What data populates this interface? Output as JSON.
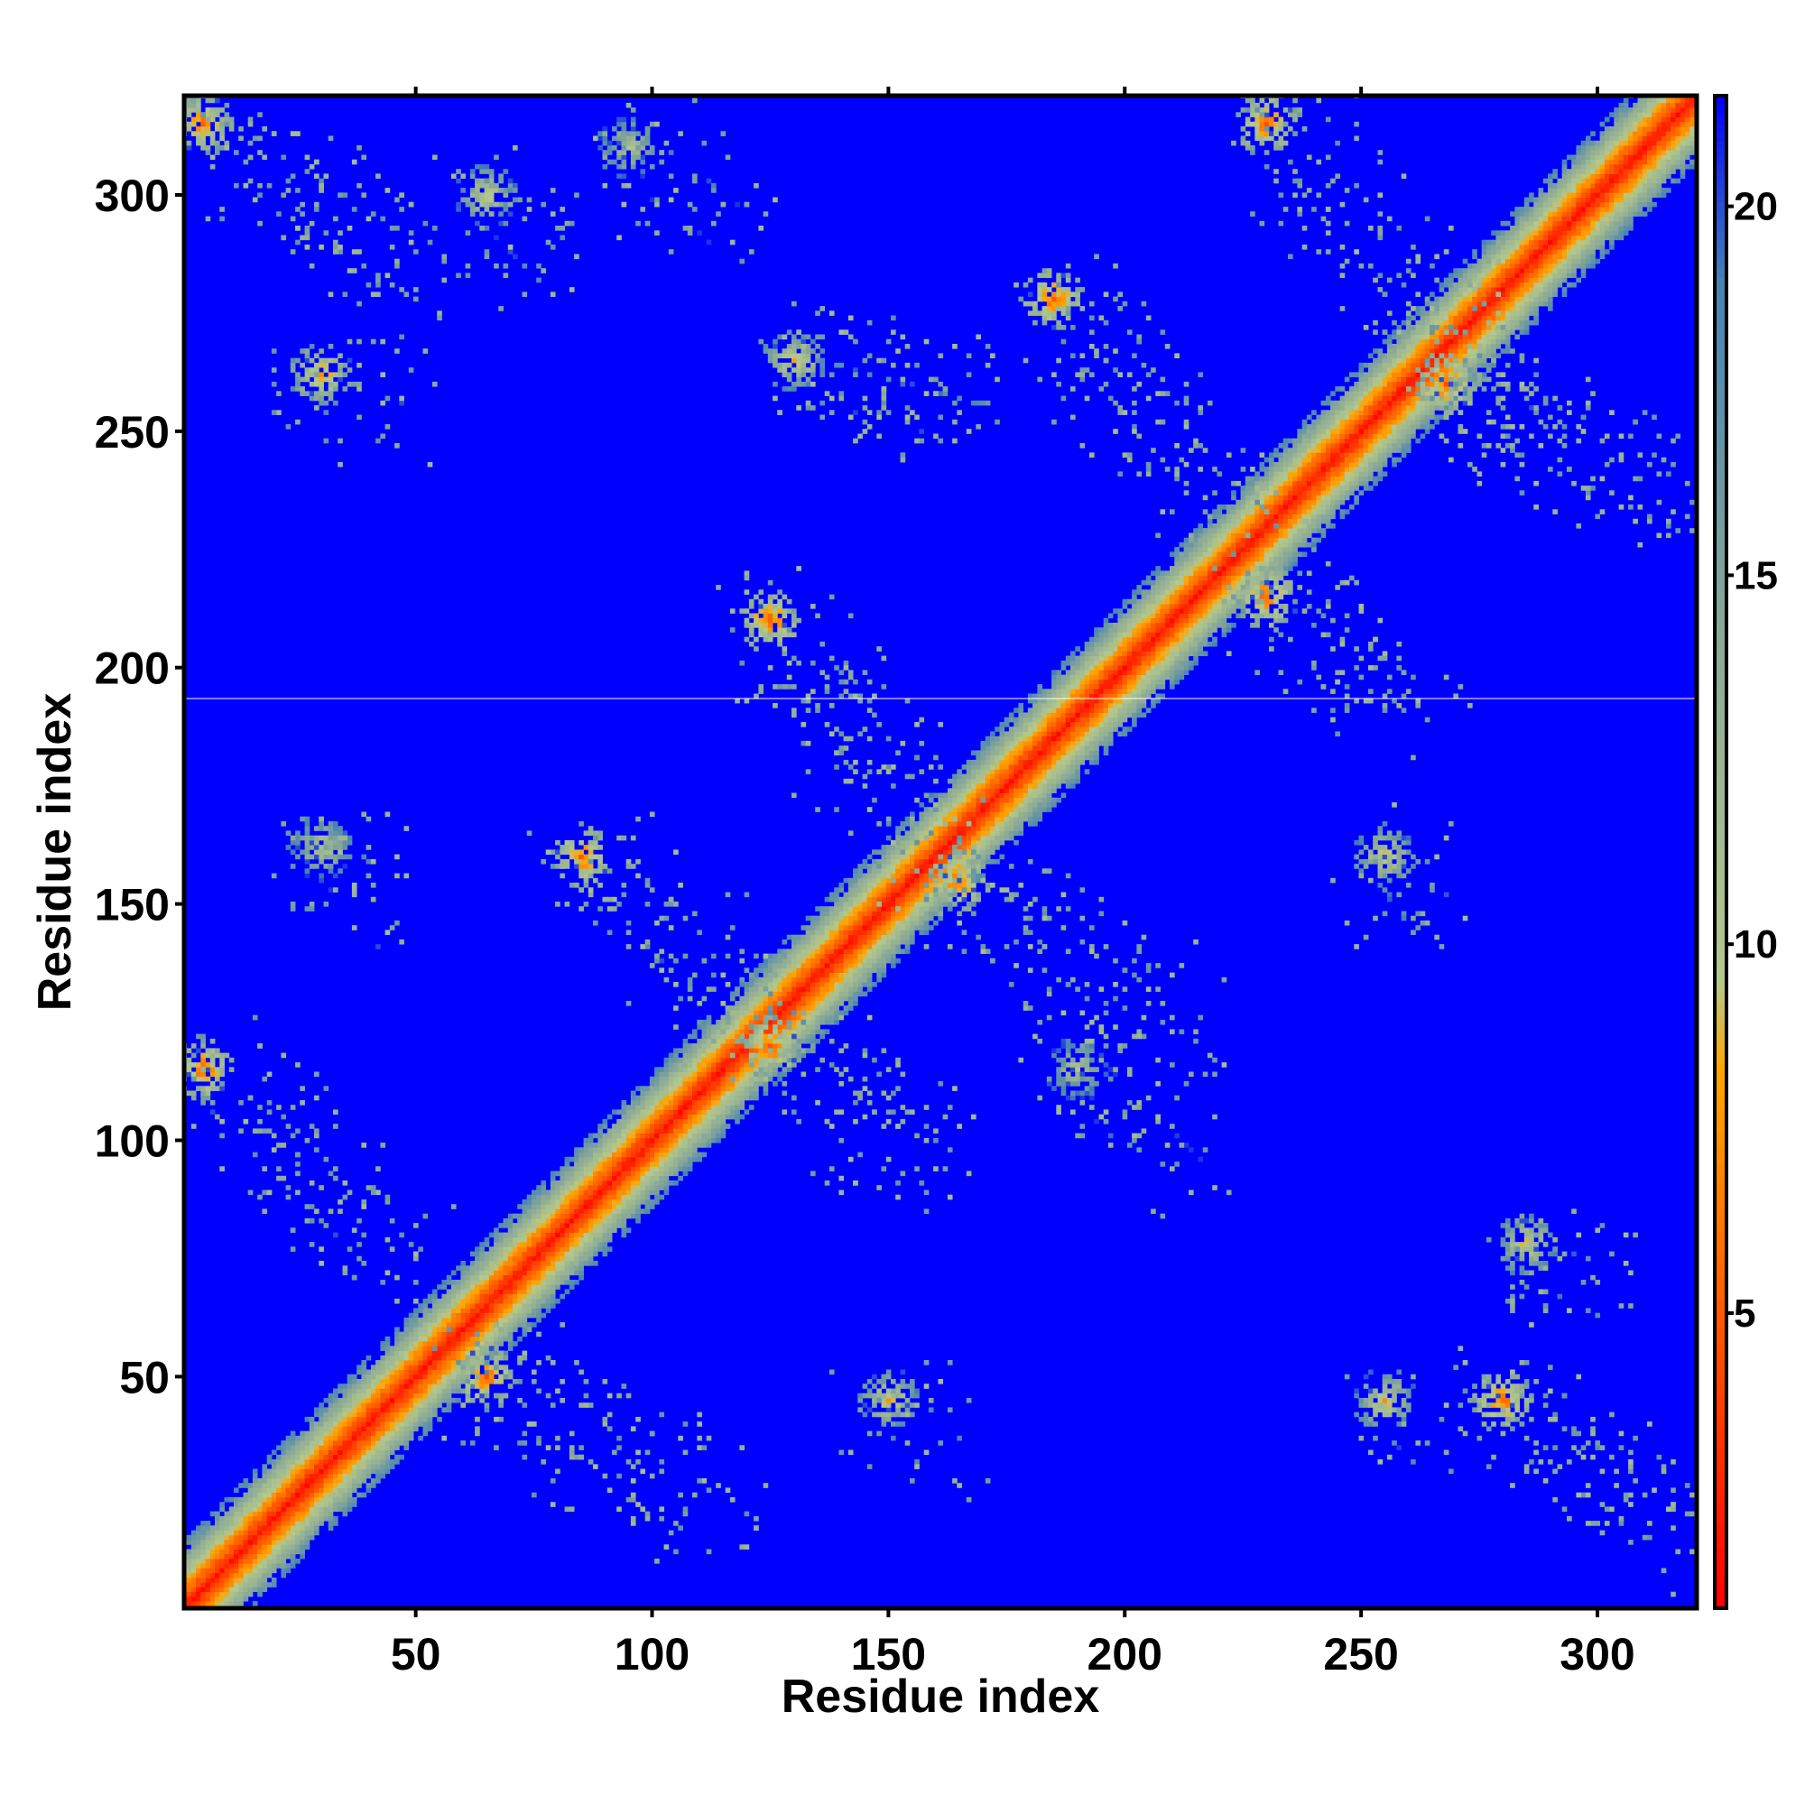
{
  "chart_data": {
    "type": "heatmap",
    "title": "",
    "xlabel": "Residue index",
    "ylabel": "Residue index",
    "xlim": [
      1,
      321
    ],
    "ylim": [
      1,
      321
    ],
    "x_ticks": [
      50,
      100,
      150,
      200,
      250,
      300
    ],
    "y_ticks": [
      50,
      100,
      150,
      200,
      250,
      300
    ],
    "colorbar": {
      "range": [
        1,
        21.5
      ],
      "ticks": [
        5,
        10,
        15,
        20
      ],
      "stops": [
        {
          "value": 1,
          "color": "#ff0000"
        },
        {
          "value": 5,
          "color": "#ff5a00"
        },
        {
          "value": 8.3,
          "color": "#ffa500"
        },
        {
          "value": 9.5,
          "color": "#b4c88c"
        },
        {
          "value": 14,
          "color": "#8caa96"
        },
        {
          "value": 19,
          "color": "#4682b4"
        },
        {
          "value": 21.5,
          "color": "#0000ff"
        }
      ]
    },
    "background_value": 21.5,
    "background_color": "#0000ff",
    "diagonal": {
      "min_value": 2,
      "width_residues": 14
    },
    "contact_bands": [
      {
        "x": [
          5,
          50
        ],
        "y": [
          315,
          285
        ],
        "min_value": 5.5
      },
      {
        "x": [
          30,
          42
        ],
        "y": [
          262,
          255
        ],
        "min_value": 6.5
      },
      {
        "x": [
          65,
          80
        ],
        "y": [
          300,
          285
        ],
        "min_value": 8.5
      },
      {
        "x": [
          95,
          115
        ],
        "y": [
          310,
          295
        ],
        "min_value": 9.5
      },
      {
        "x": [
          130,
          165
        ],
        "y": [
          265,
          255
        ],
        "min_value": 8
      },
      {
        "x": [
          185,
          225
        ],
        "y": [
          278,
          230
        ],
        "min_value": 5
      },
      {
        "x": [
          230,
          280
        ],
        "y": [
          315,
          262
        ],
        "min_value": 5
      },
      {
        "x": [
          268,
          320
        ],
        "y": [
          260,
          235
        ],
        "min_value": 5
      },
      {
        "x": [
          5,
          45
        ],
        "y": [
          115,
          75
        ],
        "min_value": 5
      },
      {
        "x": [
          65,
          115
        ],
        "y": [
          50,
          20
        ],
        "min_value": 5
      },
      {
        "x": [
          150,
          160
        ],
        "y": [
          45,
          35
        ],
        "min_value": 8
      },
      {
        "x": [
          255,
          262
        ],
        "y": [
          45,
          38
        ],
        "min_value": 8
      },
      {
        "x": [
          280,
          320
        ],
        "y": [
          45,
          15
        ],
        "min_value": 5
      },
      {
        "x": [
          85,
          125
        ],
        "y": [
          160,
          125
        ],
        "min_value": 5
      },
      {
        "x": [
          125,
          160
        ],
        "y": [
          210,
          160
        ],
        "min_value": 5
      },
      {
        "x": [
          125,
          160
        ],
        "y": [
          120,
          95
        ],
        "min_value": 5
      },
      {
        "x": [
          165,
          210
        ],
        "y": [
          155,
          125
        ],
        "min_value": 5
      },
      {
        "x": [
          230,
          265
        ],
        "y": [
          215,
          190
        ],
        "min_value": 5
      },
      {
        "x": [
          255,
          262
        ],
        "y": [
          160,
          150
        ],
        "min_value": 8
      },
      {
        "x": [
          285,
          300
        ],
        "y": [
          78,
          70
        ],
        "min_value": 8
      },
      {
        "x": [
          30,
          42
        ],
        "y": [
          162,
          148
        ],
        "min_value": 9
      },
      {
        "x": [
          190,
          210
        ],
        "y": [
          115,
          95
        ],
        "min_value": 10
      }
    ]
  }
}
